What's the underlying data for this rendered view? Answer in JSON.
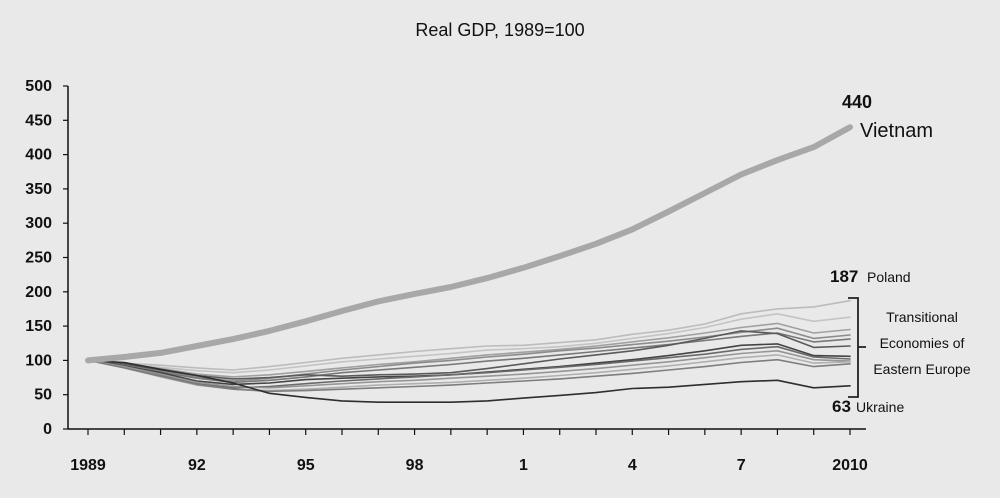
{
  "chart_data": {
    "type": "line",
    "title": "Real GDP, 1989=100",
    "xlabel": "",
    "ylabel": "",
    "x": [
      1989,
      1990,
      1991,
      1992,
      1993,
      1994,
      1995,
      1996,
      1997,
      1998,
      1999,
      2000,
      2001,
      2002,
      2003,
      2004,
      2005,
      2006,
      2007,
      2008,
      2009,
      2010
    ],
    "x_tick_values": [
      1989,
      1992,
      1995,
      1998,
      2001,
      2004,
      2007,
      2010
    ],
    "x_tick_labels": [
      "1989",
      "92",
      "95",
      "98",
      "1",
      "4",
      "7",
      "2010"
    ],
    "ylim": [
      0,
      500
    ],
    "y_ticks": [
      0,
      50,
      100,
      150,
      200,
      250,
      300,
      350,
      400,
      450,
      500
    ],
    "series": [
      {
        "name": "Vietnam",
        "emphasis": true,
        "color": "#a8a8a8",
        "values": [
          100,
          105,
          111,
          121,
          131,
          143,
          157,
          172,
          186,
          197,
          207,
          220,
          235,
          252,
          270,
          291,
          317,
          344,
          371,
          392,
          411,
          440
        ]
      },
      {
        "color": "#bcbcbc",
        "values": [
          100,
          96,
          93,
          89,
          86,
          91,
          97,
          103,
          108,
          113,
          117,
          121,
          122,
          126,
          130,
          138,
          144,
          153,
          168,
          175,
          178,
          187
        ]
      },
      {
        "color": "#c4c4c4",
        "values": [
          100,
          95,
          90,
          85,
          82,
          86,
          92,
          98,
          102,
          106,
          110,
          115,
          117,
          120,
          125,
          132,
          139,
          148,
          160,
          168,
          157,
          163
        ]
      },
      {
        "color": "#a0a0a0",
        "values": [
          100,
          94,
          88,
          80,
          76,
          79,
          84,
          89,
          94,
          98,
          103,
          108,
          112,
          116,
          121,
          127,
          133,
          140,
          148,
          154,
          140,
          145
        ]
      },
      {
        "color": "#8c8c8c",
        "values": [
          100,
          93,
          85,
          76,
          70,
          74,
          80,
          86,
          91,
          96,
          100,
          105,
          109,
          114,
          118,
          123,
          128,
          134,
          141,
          147,
          132,
          137
        ]
      },
      {
        "color": "#787878",
        "values": [
          100,
          92,
          83,
          74,
          68,
          71,
          76,
          82,
          86,
          90,
          94,
          99,
          103,
          108,
          113,
          118,
          123,
          129,
          135,
          140,
          127,
          131
        ]
      },
      {
        "color": "#5a5a5a",
        "values": [
          100,
          95,
          86,
          78,
          73,
          75,
          79,
          77,
          79,
          80,
          82,
          88,
          95,
          102,
          108,
          114,
          122,
          132,
          143,
          139,
          119,
          121
        ]
      },
      {
        "color": "#444444",
        "values": [
          100,
          92,
          82,
          70,
          65,
          67,
          72,
          74,
          76,
          77,
          79,
          83,
          87,
          91,
          96,
          101,
          107,
          114,
          122,
          124,
          107,
          106
        ]
      },
      {
        "color": "#6a6a6a",
        "values": [
          100,
          90,
          78,
          66,
          60,
          62,
          66,
          70,
          73,
          76,
          79,
          82,
          86,
          90,
          94,
          99,
          104,
          109,
          116,
          120,
          105,
          102
        ]
      },
      {
        "color": "#969696",
        "values": [
          100,
          91,
          80,
          68,
          62,
          60,
          63,
          66,
          69,
          71,
          74,
          77,
          80,
          84,
          88,
          93,
          98,
          104,
          110,
          114,
          101,
          99
        ]
      },
      {
        "color": "#b0b0b0",
        "values": [
          100,
          89,
          76,
          64,
          58,
          56,
          58,
          61,
          64,
          66,
          68,
          71,
          74,
          78,
          82,
          87,
          92,
          98,
          104,
          108,
          96,
          98
        ]
      },
      {
        "color": "#7e7e7e",
        "values": [
          100,
          89,
          77,
          65,
          58,
          55,
          56,
          58,
          60,
          62,
          64,
          67,
          70,
          73,
          77,
          81,
          86,
          91,
          97,
          101,
          91,
          95
        ]
      },
      {
        "name": "Ukraine",
        "color": "#2e2e2e",
        "values": [
          100,
          97,
          87,
          78,
          67,
          52,
          46,
          41,
          39,
          39,
          39,
          41,
          45,
          49,
          53,
          59,
          61,
          65,
          69,
          71,
          60,
          63
        ]
      }
    ],
    "annotations": {
      "vietnam_value": "440",
      "vietnam_label": "Vietnam",
      "poland_value": "187",
      "poland_label": "Poland",
      "ukraine_value": "63",
      "ukraine_label": "Ukraine",
      "group_line1": "Transitional",
      "group_line2": "Economies of",
      "group_line3": "Eastern Europe"
    }
  }
}
